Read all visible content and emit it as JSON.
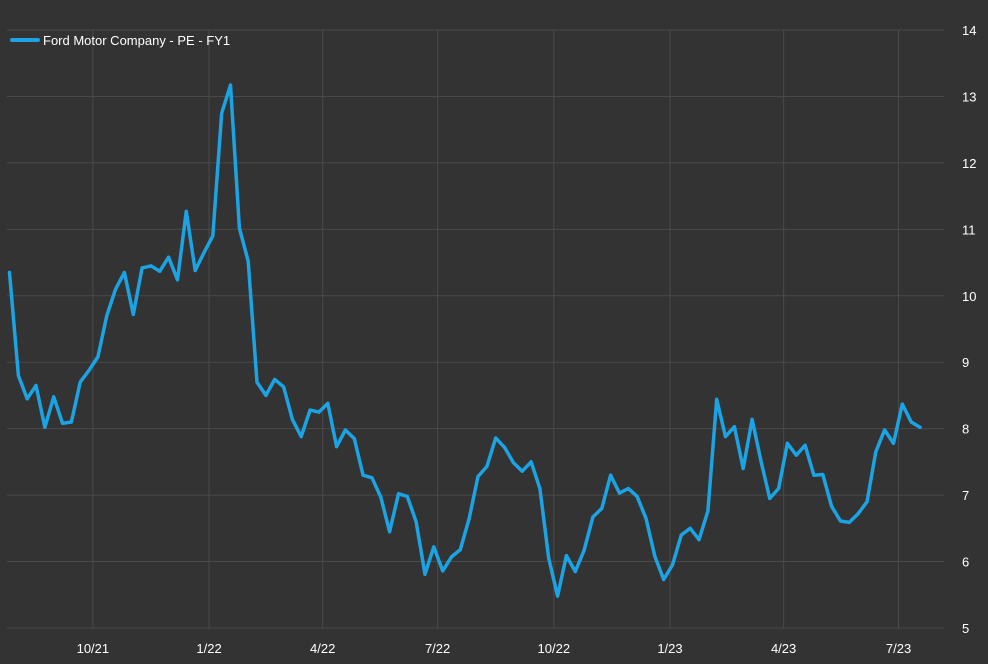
{
  "chart_data": {
    "type": "line",
    "title": "",
    "xlabel": "",
    "ylabel": "",
    "ylim": [
      5,
      14
    ],
    "grid": true,
    "legend_position": "top-left",
    "y_ticks": [
      "5",
      "6",
      "7",
      "8",
      "9",
      "10",
      "11",
      "12",
      "13",
      "14"
    ],
    "x_ticks": [
      {
        "label": "10/21",
        "x": "2021-10-01"
      },
      {
        "label": "1/22",
        "x": "2022-01-01"
      },
      {
        "label": "4/22",
        "x": "2022-04-01"
      },
      {
        "label": "7/22",
        "x": "2022-07-01"
      },
      {
        "label": "10/22",
        "x": "2022-10-01"
      },
      {
        "label": "1/23",
        "x": "2023-01-01"
      },
      {
        "label": "4/23",
        "x": "2023-04-01"
      },
      {
        "label": "7/23",
        "x": "2023-07-01"
      }
    ],
    "x_range": [
      "2021-07-25",
      "2023-08-06"
    ],
    "series": [
      {
        "name": "Ford Motor Company - PE - FY1",
        "color": "#1ba3e4",
        "points": [
          [
            "2021-07-27",
            10.35
          ],
          [
            "2021-08-03",
            8.8
          ],
          [
            "2021-08-10",
            8.45
          ],
          [
            "2021-08-17",
            8.65
          ],
          [
            "2021-08-24",
            8.02
          ],
          [
            "2021-08-31",
            8.48
          ],
          [
            "2021-09-07",
            8.08
          ],
          [
            "2021-09-14",
            8.1
          ],
          [
            "2021-09-21",
            8.7
          ],
          [
            "2021-09-28",
            8.88
          ],
          [
            "2021-10-05",
            9.08
          ],
          [
            "2021-10-12",
            9.7
          ],
          [
            "2021-10-19",
            10.1
          ],
          [
            "2021-10-26",
            10.35
          ],
          [
            "2021-11-02",
            9.72
          ],
          [
            "2021-11-09",
            10.42
          ],
          [
            "2021-11-16",
            10.45
          ],
          [
            "2021-11-23",
            10.37
          ],
          [
            "2021-11-30",
            10.58
          ],
          [
            "2021-12-07",
            10.24
          ],
          [
            "2021-12-14",
            11.27
          ],
          [
            "2021-12-21",
            10.38
          ],
          [
            "2021-12-28",
            10.65
          ],
          [
            "2022-01-04",
            10.9
          ],
          [
            "2022-01-11",
            12.75
          ],
          [
            "2022-01-18",
            13.17
          ],
          [
            "2022-01-25",
            11.02
          ],
          [
            "2022-02-01",
            10.52
          ],
          [
            "2022-02-08",
            8.7
          ],
          [
            "2022-02-15",
            8.5
          ],
          [
            "2022-02-22",
            8.74
          ],
          [
            "2022-03-01",
            8.63
          ],
          [
            "2022-03-08",
            8.14
          ],
          [
            "2022-03-15",
            7.88
          ],
          [
            "2022-03-22",
            8.28
          ],
          [
            "2022-03-29",
            8.25
          ],
          [
            "2022-04-05",
            8.38
          ],
          [
            "2022-04-12",
            7.73
          ],
          [
            "2022-04-19",
            7.98
          ],
          [
            "2022-04-26",
            7.85
          ],
          [
            "2022-05-03",
            7.3
          ],
          [
            "2022-05-10",
            7.26
          ],
          [
            "2022-05-17",
            6.97
          ],
          [
            "2022-05-24",
            6.45
          ],
          [
            "2022-05-31",
            7.02
          ],
          [
            "2022-06-07",
            6.98
          ],
          [
            "2022-06-14",
            6.6
          ],
          [
            "2022-06-21",
            5.81
          ],
          [
            "2022-06-28",
            6.22
          ],
          [
            "2022-07-05",
            5.86
          ],
          [
            "2022-07-12",
            6.07
          ],
          [
            "2022-07-19",
            6.18
          ],
          [
            "2022-07-26",
            6.65
          ],
          [
            "2022-08-02",
            7.28
          ],
          [
            "2022-08-09",
            7.43
          ],
          [
            "2022-08-16",
            7.86
          ],
          [
            "2022-08-23",
            7.72
          ],
          [
            "2022-08-30",
            7.49
          ],
          [
            "2022-09-06",
            7.36
          ],
          [
            "2022-09-13",
            7.5
          ],
          [
            "2022-09-20",
            7.1
          ],
          [
            "2022-09-27",
            6.05
          ],
          [
            "2022-10-04",
            5.48
          ],
          [
            "2022-10-11",
            6.09
          ],
          [
            "2022-10-18",
            5.85
          ],
          [
            "2022-10-25",
            6.17
          ],
          [
            "2022-11-01",
            6.67
          ],
          [
            "2022-11-08",
            6.8
          ],
          [
            "2022-11-15",
            7.3
          ],
          [
            "2022-11-22",
            7.03
          ],
          [
            "2022-11-29",
            7.1
          ],
          [
            "2022-12-06",
            6.98
          ],
          [
            "2022-12-13",
            6.65
          ],
          [
            "2022-12-20",
            6.08
          ],
          [
            "2022-12-27",
            5.73
          ],
          [
            "2023-01-03",
            5.95
          ],
          [
            "2023-01-10",
            6.4
          ],
          [
            "2023-01-17",
            6.5
          ],
          [
            "2023-01-24",
            6.33
          ],
          [
            "2023-01-31",
            6.76
          ],
          [
            "2023-02-07",
            8.44
          ],
          [
            "2023-02-14",
            7.88
          ],
          [
            "2023-02-21",
            8.03
          ],
          [
            "2023-02-28",
            7.4
          ],
          [
            "2023-03-07",
            8.14
          ],
          [
            "2023-03-14",
            7.52
          ],
          [
            "2023-03-21",
            6.95
          ],
          [
            "2023-03-28",
            7.1
          ],
          [
            "2023-04-04",
            7.78
          ],
          [
            "2023-04-11",
            7.6
          ],
          [
            "2023-04-18",
            7.75
          ],
          [
            "2023-04-25",
            7.3
          ],
          [
            "2023-05-02",
            7.31
          ],
          [
            "2023-05-09",
            6.83
          ],
          [
            "2023-05-16",
            6.61
          ],
          [
            "2023-05-23",
            6.59
          ],
          [
            "2023-05-30",
            6.72
          ],
          [
            "2023-06-06",
            6.9
          ],
          [
            "2023-06-13",
            7.65
          ],
          [
            "2023-06-20",
            7.98
          ],
          [
            "2023-06-27",
            7.78
          ],
          [
            "2023-07-04",
            8.37
          ],
          [
            "2023-07-11",
            8.1
          ],
          [
            "2023-07-18",
            8.02
          ]
        ]
      }
    ]
  }
}
